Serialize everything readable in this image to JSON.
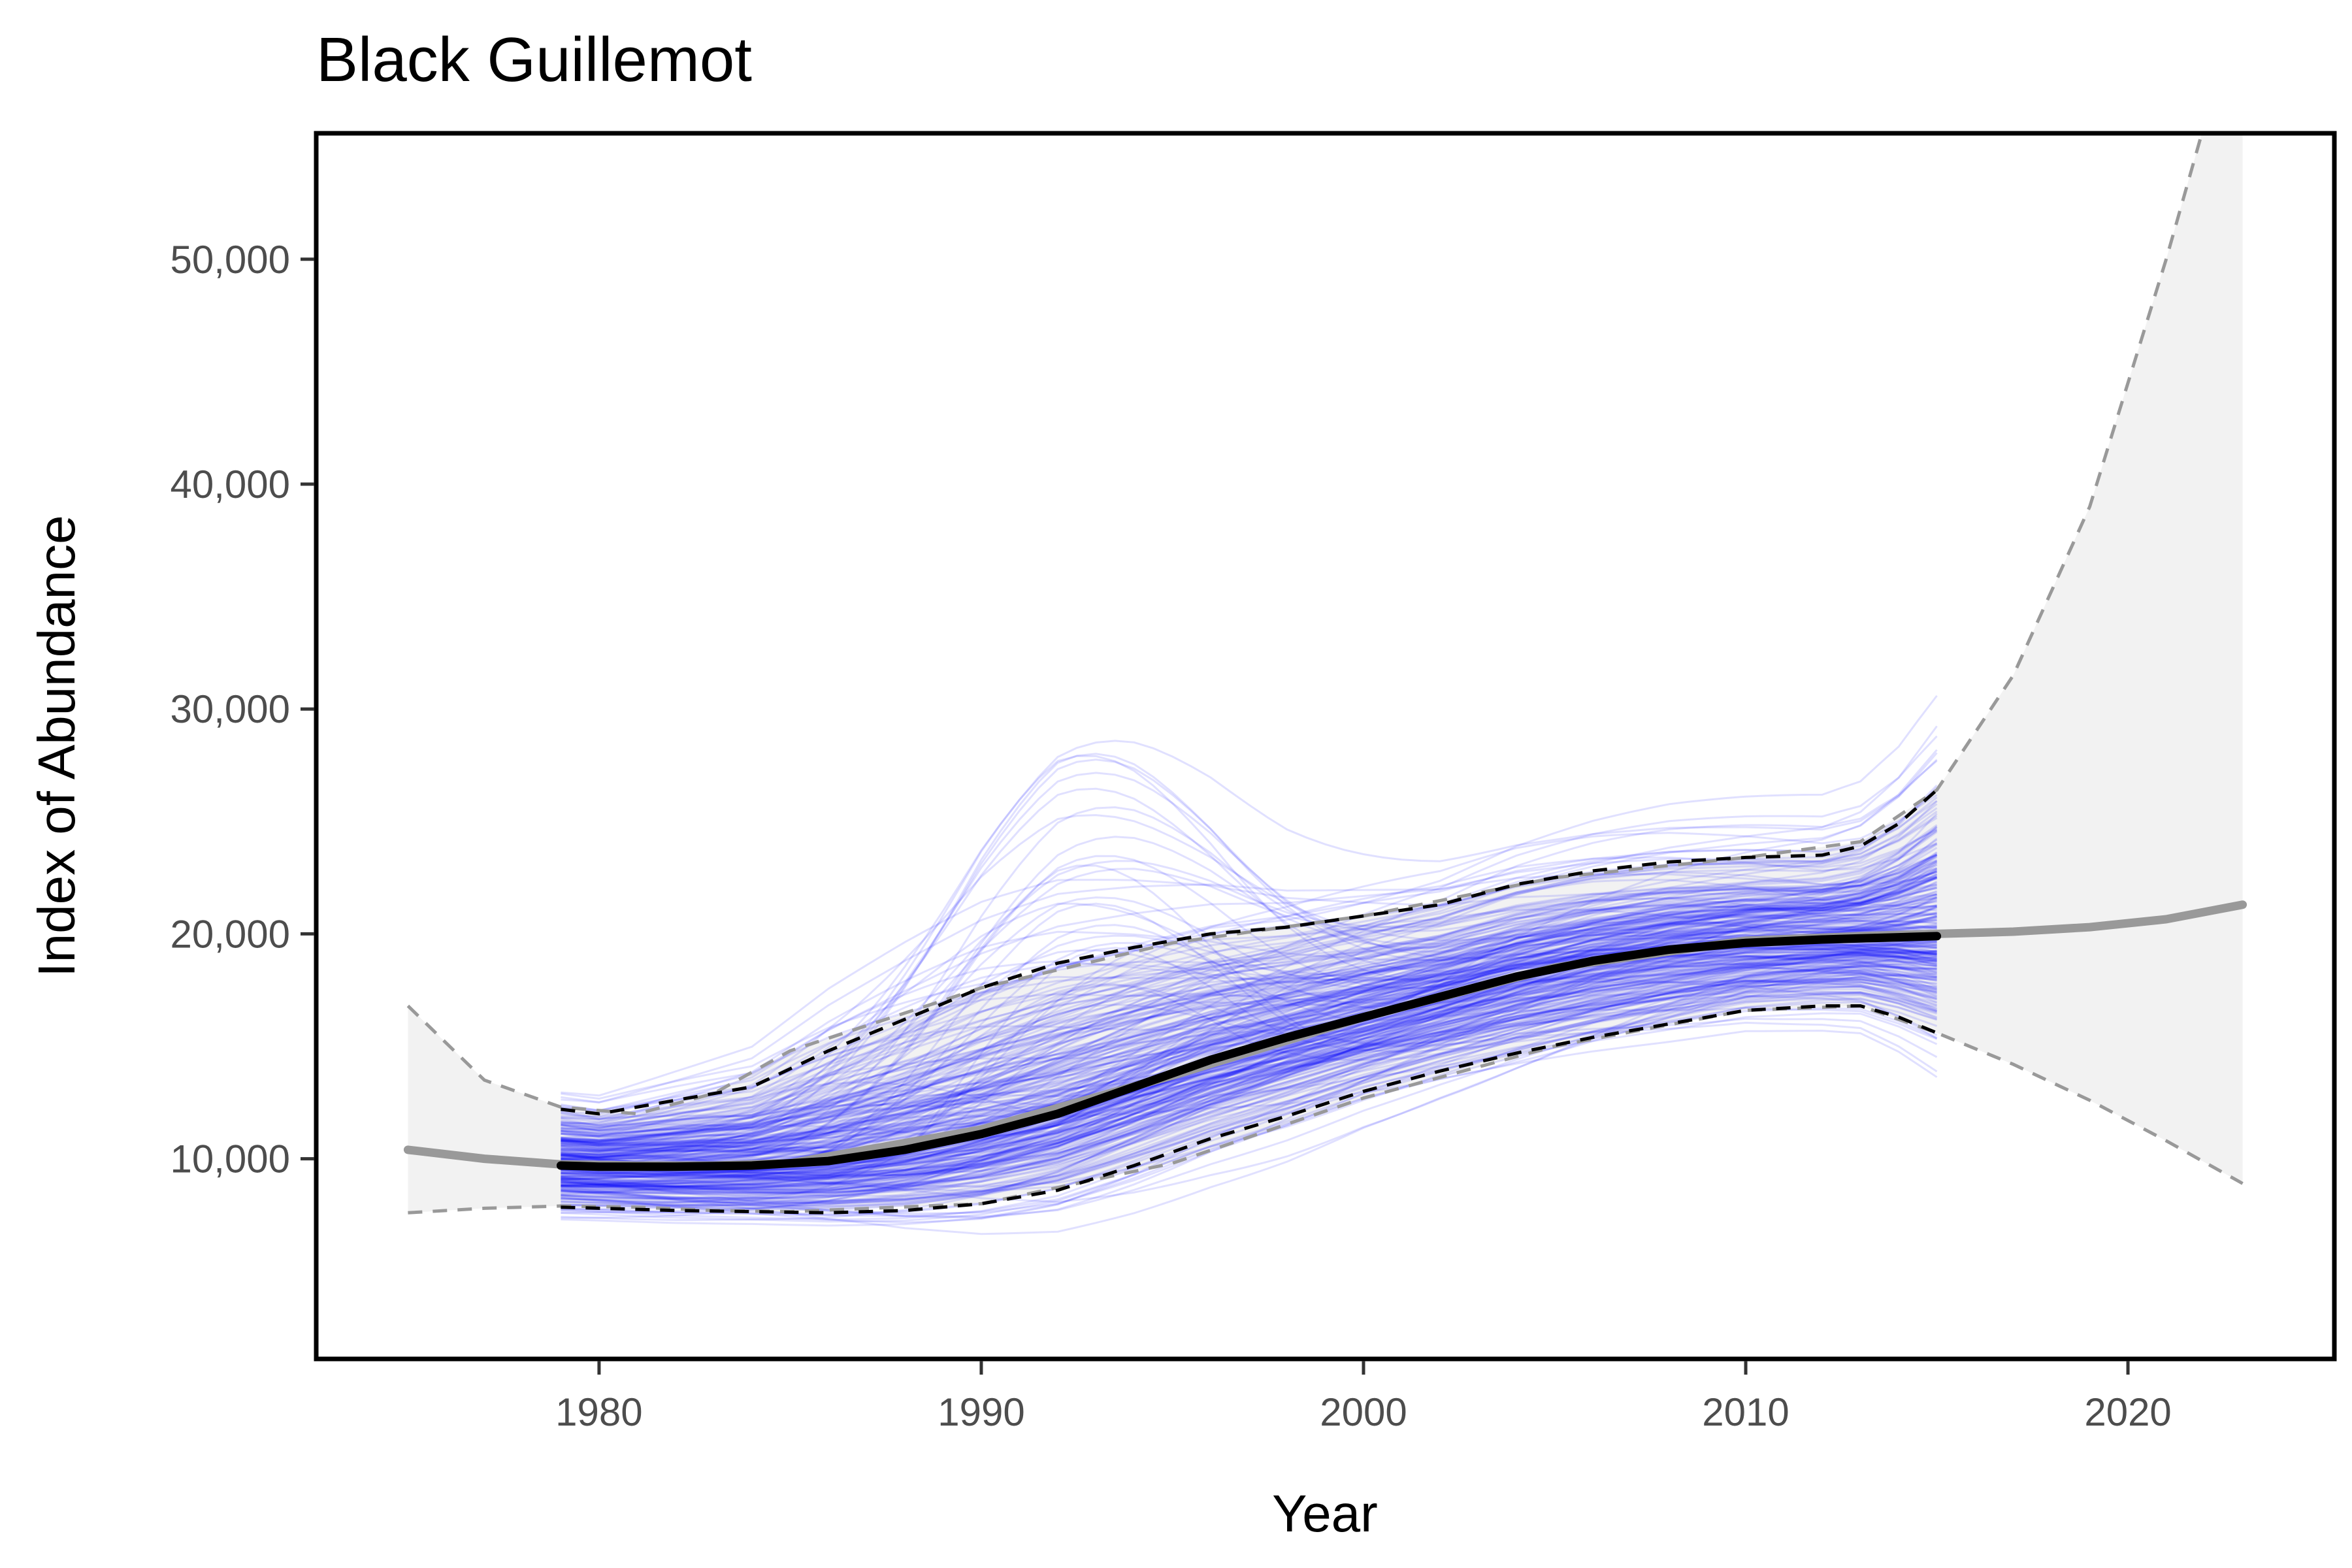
{
  "chart_data": {
    "type": "line",
    "title": "Black Guillemot",
    "xlabel": "Year",
    "ylabel": "Index of Abundance",
    "xlim": [
      1972.6,
      2025.4
    ],
    "ylim": [
      1100,
      55600
    ],
    "x_ticks": [
      1980,
      1990,
      2000,
      2010,
      2020
    ],
    "x_tick_labels": [
      "1980",
      "1990",
      "2000",
      "2010",
      "2020"
    ],
    "y_ticks": [
      10000,
      20000,
      30000,
      40000,
      50000
    ],
    "y_tick_labels": [
      "10,000",
      "20,000",
      "30,000",
      "40,000",
      "50,000"
    ],
    "grid": false,
    "legend": "none",
    "colors": {
      "trajectories": "#0000ff",
      "posterior_median": "#000000",
      "ribbon_fill": "#f2f2f2",
      "dashed_gray": "#999999",
      "trend_gray": "#999999"
    },
    "extended_trend": {
      "x": [
        1975,
        1977,
        1979,
        1981,
        1983,
        1985,
        1990,
        1995,
        2000,
        2005,
        2010,
        2013,
        2015,
        2017,
        2019,
        2021,
        2023
      ],
      "median": [
        10400,
        10000,
        9750,
        9700,
        9700,
        9800,
        11300,
        13700,
        16300,
        18500,
        19700,
        19900,
        20000,
        20100,
        20300,
        20650,
        21300
      ],
      "upper": [
        16800,
        13500,
        12300,
        12000,
        12900,
        14800,
        17600,
        19600,
        20800,
        22500,
        23400,
        24100,
        26400,
        31500,
        39000,
        50000,
        62000
      ],
      "lower": [
        7600,
        7800,
        7900,
        7850,
        7700,
        7650,
        8000,
        9800,
        12700,
        15000,
        16600,
        16800,
        15600,
        14200,
        12600,
        10800,
        8900
      ]
    },
    "observed_period": {
      "x": [
        1979,
        1980,
        1982,
        1984,
        1986,
        1988,
        1990,
        1992,
        1994,
        1996,
        1998,
        2000,
        2002,
        2004,
        2006,
        2008,
        2010,
        2012,
        2013,
        2014,
        2015
      ],
      "median": [
        9700,
        9650,
        9650,
        9700,
        9900,
        10400,
        11100,
        12000,
        13200,
        14400,
        15400,
        16300,
        17200,
        18100,
        18800,
        19300,
        19600,
        19750,
        19800,
        19850,
        19900
      ],
      "upper": [
        12200,
        12000,
        12600,
        13200,
        14800,
        16200,
        17600,
        18700,
        19400,
        20000,
        20300,
        20800,
        21300,
        22200,
        22800,
        23200,
        23400,
        23500,
        23900,
        24900,
        26400
      ],
      "lower": [
        7850,
        7800,
        7700,
        7650,
        7600,
        7700,
        8000,
        8600,
        9700,
        10900,
        11900,
        13000,
        13900,
        14700,
        15400,
        16000,
        16600,
        16800,
        16800,
        16300,
        15600
      ],
      "trajectory_count": 300
    }
  }
}
